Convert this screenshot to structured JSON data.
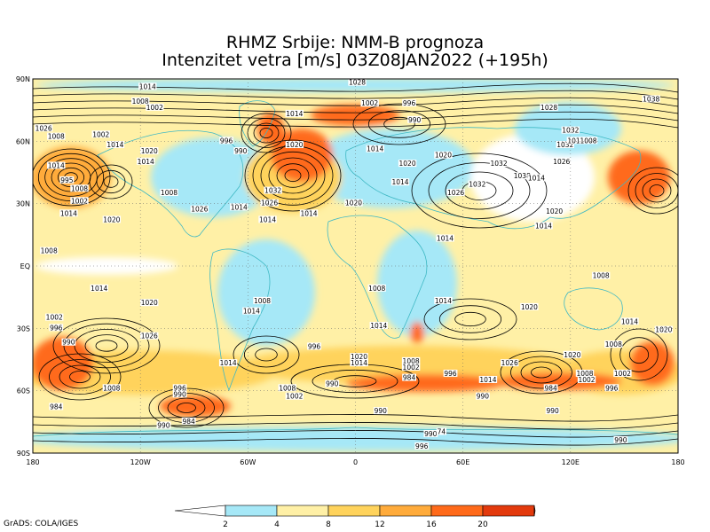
{
  "title_line1": "RHMZ Srbije: NMM-B prognoza",
  "title_line2": "Intenzitet vetra [m/s] 03Z08JAN2022 (+195h)",
  "credit": "GrADS: COLA/IGES",
  "lat_labels": [
    {
      "text": "90N",
      "value": 90
    },
    {
      "text": "60N",
      "value": 60
    },
    {
      "text": "30N",
      "value": 30
    },
    {
      "text": "EQ",
      "value": 0
    },
    {
      "text": "30S",
      "value": -30
    },
    {
      "text": "60S",
      "value": -60
    },
    {
      "text": "90S",
      "value": -90
    }
  ],
  "lon_labels": [
    {
      "text": "180",
      "value": -180
    },
    {
      "text": "120W",
      "value": -120
    },
    {
      "text": "60W",
      "value": -60
    },
    {
      "text": "0",
      "value": 0
    },
    {
      "text": "60E",
      "value": 60
    },
    {
      "text": "120E",
      "value": 120
    },
    {
      "text": "180",
      "value": 180
    }
  ],
  "colorbar": {
    "colors": [
      "#ffffff",
      "#a6e8f7",
      "#fff0a6",
      "#ffd35c",
      "#ffab3b",
      "#ff6a1a",
      "#e33a0d",
      "#b81a00"
    ],
    "ticks": [
      "2",
      "4",
      "8",
      "12",
      "16",
      "20"
    ]
  },
  "isobar_labels": [
    {
      "text": "1014",
      "lon": -116,
      "lat": 86
    },
    {
      "text": "1008",
      "lon": -120,
      "lat": 79
    },
    {
      "text": "1002",
      "lon": -112,
      "lat": 76
    },
    {
      "text": "1028",
      "lon": 1,
      "lat": 88
    },
    {
      "text": "1002",
      "lon": 8,
      "lat": 78
    },
    {
      "text": "996",
      "lon": 30,
      "lat": 78
    },
    {
      "text": "990",
      "lon": 33,
      "lat": 70
    },
    {
      "text": "1028",
      "lon": 108,
      "lat": 76
    },
    {
      "text": "1038",
      "lon": 165,
      "lat": 80
    },
    {
      "text": "1014",
      "lon": -34,
      "lat": 73
    },
    {
      "text": "1026",
      "lon": -174,
      "lat": 66
    },
    {
      "text": "1008",
      "lon": -167,
      "lat": 62
    },
    {
      "text": "1014",
      "lon": -167,
      "lat": 48
    },
    {
      "text": "1002",
      "lon": -142,
      "lat": 63
    },
    {
      "text": "1014",
      "lon": -134,
      "lat": 58
    },
    {
      "text": "1020",
      "lon": -115,
      "lat": 55
    },
    {
      "text": "1014",
      "lon": -117,
      "lat": 50
    },
    {
      "text": "996",
      "lon": -72,
      "lat": 60
    },
    {
      "text": "990",
      "lon": -64,
      "lat": 55
    },
    {
      "text": "1020",
      "lon": -34,
      "lat": 58
    },
    {
      "text": "1032",
      "lon": -46,
      "lat": 36
    },
    {
      "text": "1026",
      "lon": -48,
      "lat": 30
    },
    {
      "text": "1014",
      "lon": -26,
      "lat": 25
    },
    {
      "text": "1020",
      "lon": -1,
      "lat": 30
    },
    {
      "text": "1014",
      "lon": 11,
      "lat": 56
    },
    {
      "text": "1020",
      "lon": 29,
      "lat": 49
    },
    {
      "text": "1014",
      "lon": 25,
      "lat": 40
    },
    {
      "text": "1020",
      "lon": 49,
      "lat": 53
    },
    {
      "text": "1026",
      "lon": 56,
      "lat": 35
    },
    {
      "text": "1032",
      "lon": 68,
      "lat": 39
    },
    {
      "text": "1032",
      "lon": 80,
      "lat": 49
    },
    {
      "text": "1038",
      "lon": 93,
      "lat": 43
    },
    {
      "text": "1032",
      "lon": 117,
      "lat": 58
    },
    {
      "text": "1032",
      "lon": 120,
      "lat": 65
    },
    {
      "text": "1014",
      "lon": 123,
      "lat": 60
    },
    {
      "text": "1008",
      "lon": 130,
      "lat": 60
    },
    {
      "text": "1026",
      "lon": 115,
      "lat": 50
    },
    {
      "text": "1014",
      "lon": 101,
      "lat": 42
    },
    {
      "text": "1020",
      "lon": 111,
      "lat": 26
    },
    {
      "text": "1014",
      "lon": 105,
      "lat": 19
    },
    {
      "text": "1008",
      "lon": -154,
      "lat": 37
    },
    {
      "text": "1002",
      "lon": -154,
      "lat": 31
    },
    {
      "text": "995",
      "lon": -161,
      "lat": 41
    },
    {
      "text": "1014",
      "lon": -160,
      "lat": 25
    },
    {
      "text": "1020",
      "lon": -136,
      "lat": 22
    },
    {
      "text": "1008",
      "lon": -104,
      "lat": 35
    },
    {
      "text": "1026",
      "lon": -87,
      "lat": 27
    },
    {
      "text": "1014",
      "lon": -65,
      "lat": 28
    },
    {
      "text": "1014",
      "lon": -49,
      "lat": 22
    },
    {
      "text": "1014",
      "lon": 50,
      "lat": 13
    },
    {
      "text": "1008",
      "lon": -171,
      "lat": 7
    },
    {
      "text": "1014",
      "lon": -143,
      "lat": -11
    },
    {
      "text": "1020",
      "lon": -115,
      "lat": -18
    },
    {
      "text": "1008",
      "lon": -52,
      "lat": -17
    },
    {
      "text": "1014",
      "lon": -58,
      "lat": -22
    },
    {
      "text": "1008",
      "lon": 12,
      "lat": -11
    },
    {
      "text": "1014",
      "lon": 49,
      "lat": -17
    },
    {
      "text": "1014",
      "lon": 13,
      "lat": -29
    },
    {
      "text": "1020",
      "lon": 97,
      "lat": -20
    },
    {
      "text": "1008",
      "lon": 137,
      "lat": -5
    },
    {
      "text": "1014",
      "lon": 153,
      "lat": -27
    },
    {
      "text": "1020",
      "lon": 172,
      "lat": -31
    },
    {
      "text": "1002",
      "lon": -168,
      "lat": -25
    },
    {
      "text": "996",
      "lon": -167,
      "lat": -30
    },
    {
      "text": "990",
      "lon": -160,
      "lat": -37
    },
    {
      "text": "1026",
      "lon": -115,
      "lat": -34
    },
    {
      "text": "1014",
      "lon": -71,
      "lat": -47
    },
    {
      "text": "996",
      "lon": -23,
      "lat": -39
    },
    {
      "text": "990",
      "lon": -13,
      "lat": -57
    },
    {
      "text": "1020",
      "lon": 2,
      "lat": -44
    },
    {
      "text": "1014",
      "lon": 2,
      "lat": -47
    },
    {
      "text": "1008",
      "lon": 31,
      "lat": -46
    },
    {
      "text": "1002",
      "lon": 31,
      "lat": -49
    },
    {
      "text": "984",
      "lon": 30,
      "lat": -54
    },
    {
      "text": "996",
      "lon": 53,
      "lat": -52
    },
    {
      "text": "1014",
      "lon": 74,
      "lat": -55
    },
    {
      "text": "1026",
      "lon": 86,
      "lat": -47
    },
    {
      "text": "1020",
      "lon": 121,
      "lat": -43
    },
    {
      "text": "1008",
      "lon": 128,
      "lat": -52
    },
    {
      "text": "1002",
      "lon": 129,
      "lat": -55
    },
    {
      "text": "984",
      "lon": 109,
      "lat": -59
    },
    {
      "text": "996",
      "lon": 143,
      "lat": -59
    },
    {
      "text": "1008",
      "lon": 144,
      "lat": -38
    },
    {
      "text": "1002",
      "lon": 149,
      "lat": -52
    },
    {
      "text": "1008",
      "lon": -136,
      "lat": -59
    },
    {
      "text": "996",
      "lon": -98,
      "lat": -59
    },
    {
      "text": "990",
      "lon": -98,
      "lat": -62
    },
    {
      "text": "1008",
      "lon": -38,
      "lat": -59
    },
    {
      "text": "1002",
      "lon": -34,
      "lat": -63
    },
    {
      "text": "984",
      "lon": -167,
      "lat": -68
    },
    {
      "text": "990",
      "lon": -107,
      "lat": -77
    },
    {
      "text": "984",
      "lon": -93,
      "lat": -75
    },
    {
      "text": "990",
      "lon": 14,
      "lat": -70
    },
    {
      "text": "990",
      "lon": 71,
      "lat": -63
    },
    {
      "text": "990",
      "lon": 110,
      "lat": -70
    },
    {
      "text": "990",
      "lon": 42,
      "lat": -81
    },
    {
      "text": "74",
      "lon": 48,
      "lat": -80
    },
    {
      "text": "996",
      "lon": 37,
      "lat": -87
    },
    {
      "text": "990",
      "lon": 148,
      "lat": -84
    }
  ]
}
